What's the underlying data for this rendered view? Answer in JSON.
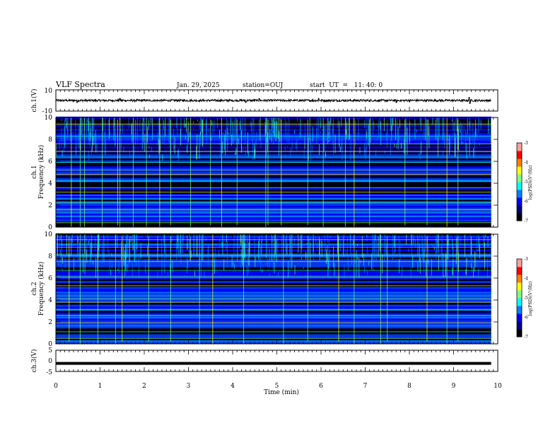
{
  "header": {
    "title": "VLF Spectra",
    "date": "Jan. 29, 2025",
    "station": "station=OUJ",
    "start": "start  UT  =   11: 40: 0"
  },
  "colors": {
    "background": "#ffffff",
    "axis": "#000000",
    "colormap": [
      "#000000",
      "#00007f",
      "#0000ff",
      "#007fff",
      "#00ffff",
      "#7fff7f",
      "#ffff00",
      "#ff7f00",
      "#ff0000",
      "#ff9f9f",
      "#ffffff"
    ]
  },
  "chart_data": [
    {
      "type": "line",
      "name": "ch1-waveform",
      "ylabel": "ch.1(V)",
      "ylim": [
        -10,
        10
      ],
      "yticks": [
        "10",
        "-10"
      ],
      "xlim": [
        0,
        10
      ],
      "baseline": 0,
      "amplitude": 1,
      "spikes": [
        [
          0.48,
          -2
        ],
        [
          1.45,
          2
        ],
        [
          4.3,
          -2
        ],
        [
          4.6,
          2
        ],
        [
          5.95,
          2
        ],
        [
          7.7,
          -2
        ],
        [
          9.35,
          3
        ],
        [
          9.37,
          -3
        ]
      ]
    },
    {
      "type": "heatmap",
      "name": "ch1-spectrogram",
      "ylabel": "Frequency (kHz)",
      "ylabel2": "ch.1",
      "ylim": [
        0,
        10
      ],
      "yticks": [
        "0",
        "2",
        "4",
        "6",
        "8",
        "10"
      ],
      "xlim": [
        0,
        9.85
      ],
      "colorbar": {
        "label": "log(PSD)(V²/Hz)",
        "range": [
          -7,
          -3
        ],
        "ticks": [
          "-3",
          "-4",
          "-5",
          "-6",
          "-7"
        ]
      },
      "horizontal_lines_khz": [
        0.4,
        1.0,
        1.6,
        2.3,
        2.9,
        3.2,
        3.6,
        4.2,
        4.8,
        5.2,
        5.9,
        6.9,
        7.6,
        8.3,
        9.4
      ],
      "vertical_events_min": [
        0.35,
        0.55,
        0.65,
        1.05,
        1.4,
        1.45,
        1.75,
        2.05,
        2.35,
        2.6,
        3.05,
        3.5,
        3.75,
        4.1,
        4.75,
        4.8,
        5.1,
        5.7,
        6.05,
        6.55,
        6.75,
        7.1,
        7.9,
        8.4,
        8.85,
        9.1
      ]
    },
    {
      "type": "heatmap",
      "name": "ch2-spectrogram",
      "ylabel": "Frequency (kHz)",
      "ylabel2": "ch.2",
      "ylim": [
        0,
        10
      ],
      "yticks": [
        "0",
        "2",
        "4",
        "6",
        "8",
        "10"
      ],
      "xlim": [
        0,
        9.85
      ],
      "colorbar": {
        "label": "log(PSD)(V²/Hz)",
        "range": [
          -7,
          -3
        ],
        "ticks": [
          "-3",
          "-4",
          "-5",
          "-6",
          "-7"
        ]
      },
      "horizontal_lines_khz": [
        0.5,
        1.1,
        1.9,
        2.6,
        3.1,
        3.8,
        4.1,
        4.7,
        5.3,
        6.1,
        6.7,
        7.5,
        8.1,
        8.8,
        9.5
      ],
      "vertical_events_min": [
        0.3,
        0.55,
        0.95,
        1.35,
        1.5,
        2.1,
        2.6,
        3.25,
        3.55,
        4.25,
        5.15,
        5.7,
        6.4,
        6.75,
        7.35,
        7.5,
        8.4,
        8.85,
        9.1
      ]
    },
    {
      "type": "line",
      "name": "ch3-waveform",
      "ylabel": "ch.3(V)",
      "ylim": [
        -5,
        5
      ],
      "yticks": [
        "5",
        "0",
        "-5"
      ],
      "xlim": [
        0,
        10
      ],
      "baseline": -1.2
    }
  ],
  "xaxis": {
    "label": "Time (min)",
    "ticks": [
      "0",
      "1",
      "2",
      "3",
      "4",
      "5",
      "6",
      "7",
      "8",
      "9",
      "10"
    ],
    "range": [
      0,
      10
    ]
  }
}
